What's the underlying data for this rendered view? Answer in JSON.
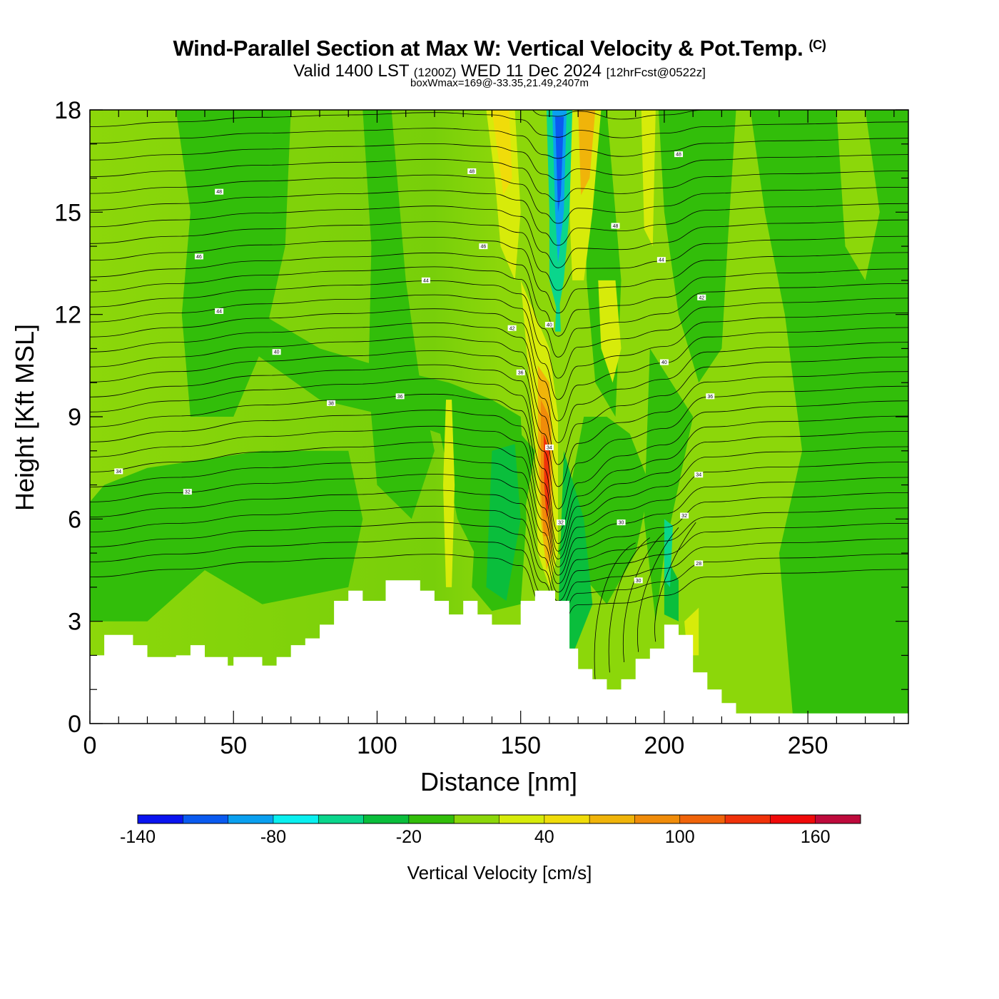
{
  "header": {
    "title": "Wind-Parallel Section at Max W: Vertical Velocity & Pot.Temp.",
    "copyright": "(C)",
    "valid_prefix": "Valid 1400 LST",
    "valid_utc": "(1200Z)",
    "valid_date": "WED 11 Dec 2024",
    "forecast_info": "[12hrFcst@0522z]",
    "boxwmax": "boxWmax=169@-33.35,21.49,2407m"
  },
  "chart_data": {
    "type": "heatmap",
    "title": "Wind-Parallel Section at Max W: Vertical Velocity & Pot.Temp.",
    "xlabel": "Distance [nm]",
    "ylabel": "Height [Kft MSL]",
    "xlim": [
      0,
      285
    ],
    "ylim": [
      0,
      18
    ],
    "x_ticks": [
      "0",
      "50",
      "100",
      "150",
      "200",
      "250"
    ],
    "y_ticks": [
      "0",
      "3",
      "6",
      "9",
      "12",
      "15",
      "18"
    ],
    "colorbar": {
      "title": "Vertical Velocity [cm/s]",
      "min": -140,
      "max": 180,
      "step": 20,
      "tick_values": [
        -140,
        -80,
        -20,
        40,
        100,
        160
      ],
      "tick_labels": [
        "-140",
        "-80",
        "-20",
        "40",
        "100",
        "160"
      ],
      "colors": [
        "#0a14f0",
        "#0a5af0",
        "#0aa0f0",
        "#0af0f0",
        "#0ad68c",
        "#0abe3c",
        "#32be0a",
        "#8cd70a",
        "#d7eb0a",
        "#f0dc0a",
        "#f0b40a",
        "#f08c0a",
        "#f0640a",
        "#f0320a",
        "#f00a0a",
        "#be0a3c"
      ]
    },
    "field_max": {
      "value": 169,
      "units": "cm/s",
      "lat": -33.35,
      "lon": 21.49,
      "height_m": 2407
    },
    "isentrope_labels": [
      "48",
      "46",
      "44",
      "42",
      "40",
      "38",
      "36",
      "34",
      "32",
      "30",
      "28"
    ],
    "terrain_profile": {
      "x_nm": [
        0,
        5,
        15,
        20,
        30,
        35,
        40,
        45,
        48,
        50,
        55,
        60,
        65,
        70,
        75,
        80,
        85,
        90,
        95,
        100,
        103,
        110,
        115,
        120,
        125,
        130,
        135,
        140,
        145,
        150,
        155,
        158,
        162,
        167,
        170,
        175,
        180,
        185,
        190,
        195,
        200,
        205,
        210,
        215,
        220,
        225,
        230,
        285
      ],
      "height_kft": [
        2.0,
        2.6,
        2.3,
        1.95,
        2.0,
        2.3,
        1.95,
        1.95,
        1.7,
        1.95,
        1.95,
        1.7,
        1.95,
        2.3,
        2.5,
        2.9,
        3.6,
        3.9,
        3.6,
        3.6,
        4.2,
        4.2,
        3.9,
        3.6,
        3.2,
        3.6,
        3.2,
        2.9,
        2.9,
        3.6,
        3.9,
        3.9,
        3.6,
        2.2,
        1.6,
        1.3,
        1.0,
        1.3,
        1.9,
        2.2,
        2.9,
        2.6,
        1.5,
        1.0,
        0.6,
        0.3,
        0.3,
        0.3
      ]
    }
  }
}
